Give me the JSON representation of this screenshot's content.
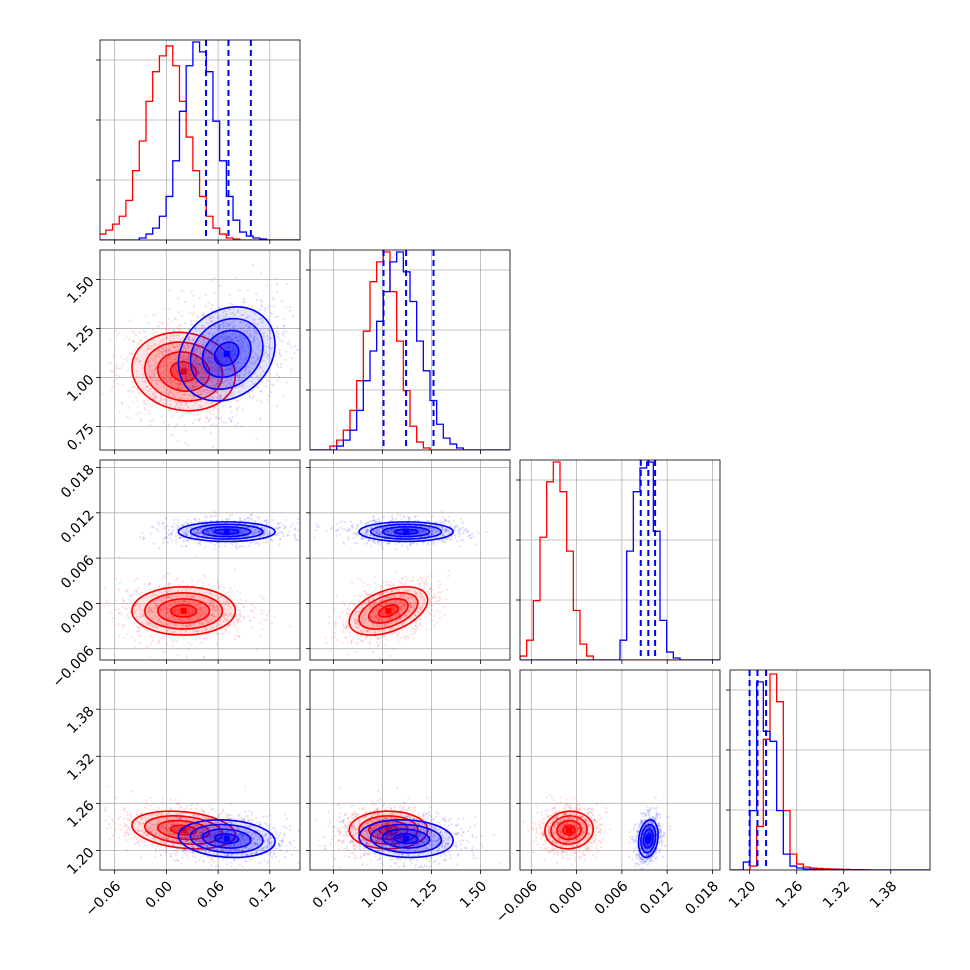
{
  "chart_data": {
    "type": "corner",
    "title": "",
    "params": [
      {
        "ticks": [
          -0.06,
          0.0,
          0.06,
          0.12
        ],
        "tick_labels": [
          "−0.06",
          "0.00",
          "0.06",
          "0.12"
        ],
        "range": [
          -0.077,
          0.155
        ]
      },
      {
        "ticks": [
          0.75,
          1.0,
          1.25,
          1.5
        ],
        "tick_labels": [
          "0.75",
          "1.00",
          "1.25",
          "1.50"
        ],
        "range": [
          0.63,
          1.65
        ]
      },
      {
        "ticks": [
          -0.006,
          0.0,
          0.006,
          0.012,
          0.018
        ],
        "tick_labels": [
          "−0.006",
          "0.000",
          "0.006",
          "0.012",
          "0.018"
        ],
        "range": [
          -0.0075,
          0.019
        ]
      },
      {
        "ticks": [
          1.2,
          1.26,
          1.32,
          1.38
        ],
        "tick_labels": [
          "1.20",
          "1.26",
          "1.32",
          "1.38"
        ],
        "range": [
          1.175,
          1.43
        ]
      }
    ],
    "series": [
      {
        "color": "#ff0000",
        "mean": [
          0.02,
          1.03,
          -0.001,
          1.226
        ],
        "sd": [
          0.03,
          0.1,
          0.0016,
          0.012
        ],
        "corr": [
          [
            0,
            1,
            -0.1
          ],
          [
            1,
            2,
            0.45
          ],
          [
            0,
            3,
            -0.25
          ],
          [
            2,
            3,
            0.05
          ],
          [
            0,
            2,
            0.0
          ],
          [
            1,
            3,
            0.0
          ]
        ],
        "quantiles": [],
        "hist": [
          {
            "edges": [
              -0.078,
              0.155
            ],
            "counts": [
              0.03,
              0.05,
              0.08,
              0.12,
              0.2,
              0.35,
              0.5,
              0.7,
              0.85,
              0.93,
              0.98,
              0.88,
              0.7,
              0.52,
              0.35,
              0.22,
              0.12,
              0.06,
              0.03,
              0.01,
              0.005,
              0,
              0,
              0,
              0,
              0,
              0,
              0,
              0,
              0
            ]
          },
          {
            "edges": [
              0.63,
              1.65
            ],
            "counts": [
              0,
              0,
              0,
              0.02,
              0.05,
              0.1,
              0.2,
              0.35,
              0.6,
              0.85,
              0.95,
              1.0,
              0.8,
              0.55,
              0.3,
              0.12,
              0.04,
              0.01,
              0,
              0,
              0,
              0,
              0,
              0,
              0,
              0,
              0,
              0,
              0,
              0
            ]
          },
          {
            "edges": [
              -0.0075,
              0.019
            ],
            "counts": [
              0.02,
              0.1,
              0.3,
              0.62,
              0.9,
              1.0,
              0.85,
              0.55,
              0.25,
              0.08,
              0.02,
              0,
              0,
              0,
              0,
              0,
              0,
              0,
              0,
              0,
              0,
              0,
              0,
              0,
              0,
              0,
              0,
              0,
              0,
              0
            ]
          },
          {
            "edges": [
              1.175,
              1.43
            ],
            "counts": [
              0,
              0,
              0,
              0.02,
              0.22,
              0.66,
              0.99,
              0.85,
              0.3,
              0.08,
              0.03,
              0.015,
              0.01,
              0.008,
              0.006,
              0.005,
              0.004,
              0.003,
              0.002,
              0.002,
              0.001,
              0,
              0,
              0,
              0,
              0,
              0,
              0,
              0,
              0
            ]
          }
        ]
      },
      {
        "color": "#0000ff",
        "mean": [
          0.07,
          1.12,
          0.0095,
          1.215
        ],
        "sd": [
          0.028,
          0.12,
          0.00065,
          0.012
        ],
        "corr": [
          [
            0,
            1,
            0.2
          ],
          [
            1,
            2,
            0.0
          ],
          [
            0,
            3,
            -0.15
          ],
          [
            2,
            3,
            0.2
          ],
          [
            0,
            2,
            0.0
          ],
          [
            1,
            3,
            -0.1
          ]
        ],
        "quantiles": [
          [
            0.046,
            0.072,
            0.098
          ],
          [
            1.005,
            1.12,
            1.26
          ],
          [
            0.0085,
            0.0095,
            0.0104
          ],
          [
            1.2,
            1.21,
            1.221
          ]
        ],
        "hist": [
          {
            "edges": [
              -0.078,
              0.155
            ],
            "counts": [
              0,
              0,
              0,
              0,
              0,
              0,
              0.01,
              0.03,
              0.06,
              0.12,
              0.22,
              0.4,
              0.65,
              0.88,
              1.0,
              0.95,
              0.85,
              0.6,
              0.4,
              0.22,
              0.1,
              0.04,
              0.02,
              0.01,
              0.005,
              0,
              0,
              0,
              0,
              0
            ]
          },
          {
            "edges": [
              0.63,
              1.65
            ],
            "counts": [
              0,
              0,
              0,
              0,
              0.02,
              0.05,
              0.1,
              0.2,
              0.35,
              0.5,
              0.65,
              0.8,
              0.95,
              1.0,
              0.9,
              0.75,
              0.55,
              0.4,
              0.25,
              0.13,
              0.06,
              0.03,
              0.01,
              0,
              0,
              0,
              0,
              0,
              0,
              0
            ]
          },
          {
            "edges": [
              -0.0075,
              0.019
            ],
            "counts": [
              0,
              0,
              0,
              0,
              0,
              0,
              0,
              0,
              0,
              0,
              0,
              0,
              0,
              0,
              0,
              0.1,
              0.55,
              0.85,
              0.97,
              1.0,
              0.65,
              0.2,
              0.04,
              0.01,
              0,
              0,
              0,
              0,
              0,
              0
            ]
          },
          {
            "edges": [
              1.175,
              1.43
            ],
            "counts": [
              0,
              0,
              0.04,
              0.3,
              0.95,
              0.7,
              0.65,
              0.3,
              0.08,
              0.02,
              0.01,
              0.005,
              0.003,
              0.002,
              0.001,
              0,
              0,
              0,
              0,
              0,
              0,
              0,
              0,
              0,
              0,
              0,
              0,
              0,
              0,
              0
            ]
          }
        ]
      }
    ],
    "contour_levels": [
      0.5,
      1.0,
      1.5,
      2.0
    ],
    "grid": true
  }
}
